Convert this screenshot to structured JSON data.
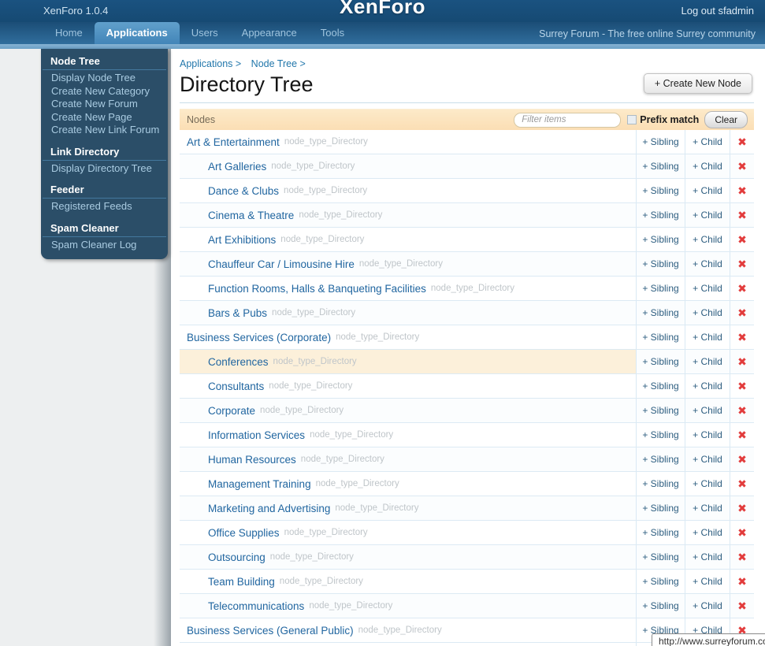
{
  "header": {
    "version": "XenForo 1.0.4",
    "logo": "XenForo",
    "logout": "Log out sfadmin"
  },
  "nav": {
    "tabs": [
      {
        "label": "Home",
        "active": false
      },
      {
        "label": "Applications",
        "active": true
      },
      {
        "label": "Users",
        "active": false
      },
      {
        "label": "Appearance",
        "active": false
      },
      {
        "label": "Tools",
        "active": false
      }
    ],
    "community": "Surrey Forum - The free online Surrey community"
  },
  "sidebar": {
    "sections": [
      {
        "title": "Node Tree",
        "items": [
          "Display Node Tree",
          "Create New Category",
          "Create New Forum",
          "Create New Page",
          "Create New Link Forum"
        ]
      },
      {
        "title": "Link Directory",
        "items": [
          "Display Directory Tree"
        ]
      },
      {
        "title": "Feeder",
        "items": [
          "Registered Feeds"
        ]
      },
      {
        "title": "Spam Cleaner",
        "items": [
          "Spam Cleaner Log"
        ]
      }
    ]
  },
  "main": {
    "breadcrumb": [
      "Applications >",
      "Node Tree >"
    ],
    "title": "Directory Tree",
    "create_button": "+ Create New Node",
    "table": {
      "header_label": "Nodes",
      "filter_placeholder": "Filter items",
      "prefix_match_label": "Prefix match",
      "clear_button": "Clear",
      "node_type_label": "node_type_Directory",
      "sibling_label": "+ Sibling",
      "child_label": "+ Child",
      "delete_icon_glyph": "✖",
      "rows": [
        {
          "name": "Art & Entertainment",
          "level": 0,
          "highlighted": false
        },
        {
          "name": "Art Galleries",
          "level": 1,
          "highlighted": false
        },
        {
          "name": "Dance & Clubs",
          "level": 1,
          "highlighted": false
        },
        {
          "name": "Cinema & Theatre",
          "level": 1,
          "highlighted": false
        },
        {
          "name": "Art Exhibitions",
          "level": 1,
          "highlighted": false
        },
        {
          "name": "Chauffeur Car / Limousine Hire",
          "level": 1,
          "highlighted": false
        },
        {
          "name": "Function Rooms, Halls & Banqueting Facilities",
          "level": 1,
          "highlighted": false
        },
        {
          "name": "Bars & Pubs",
          "level": 1,
          "highlighted": false
        },
        {
          "name": "Business Services (Corporate)",
          "level": 0,
          "highlighted": false
        },
        {
          "name": "Conferences",
          "level": 1,
          "highlighted": true
        },
        {
          "name": "Consultants",
          "level": 1,
          "highlighted": false
        },
        {
          "name": "Corporate",
          "level": 1,
          "highlighted": false
        },
        {
          "name": "Information Services",
          "level": 1,
          "highlighted": false
        },
        {
          "name": "Human Resources",
          "level": 1,
          "highlighted": false
        },
        {
          "name": "Management Training",
          "level": 1,
          "highlighted": false
        },
        {
          "name": "Marketing and Advertising",
          "level": 1,
          "highlighted": false
        },
        {
          "name": "Office Supplies",
          "level": 1,
          "highlighted": false
        },
        {
          "name": "Outsourcing",
          "level": 1,
          "highlighted": false
        },
        {
          "name": "Team Building",
          "level": 1,
          "highlighted": false
        },
        {
          "name": "Telecommunications",
          "level": 1,
          "highlighted": false
        },
        {
          "name": "Business Services (General Public)",
          "level": 0,
          "highlighted": false
        }
      ]
    }
  },
  "status_tooltip": {
    "url": "http://www.surreyforum.co"
  },
  "colors": {
    "accent_peach": "#fbdeb4",
    "link_blue": "#2166a0",
    "delete_red": "#e23c3c",
    "panel_navy": "#2b4e68"
  }
}
